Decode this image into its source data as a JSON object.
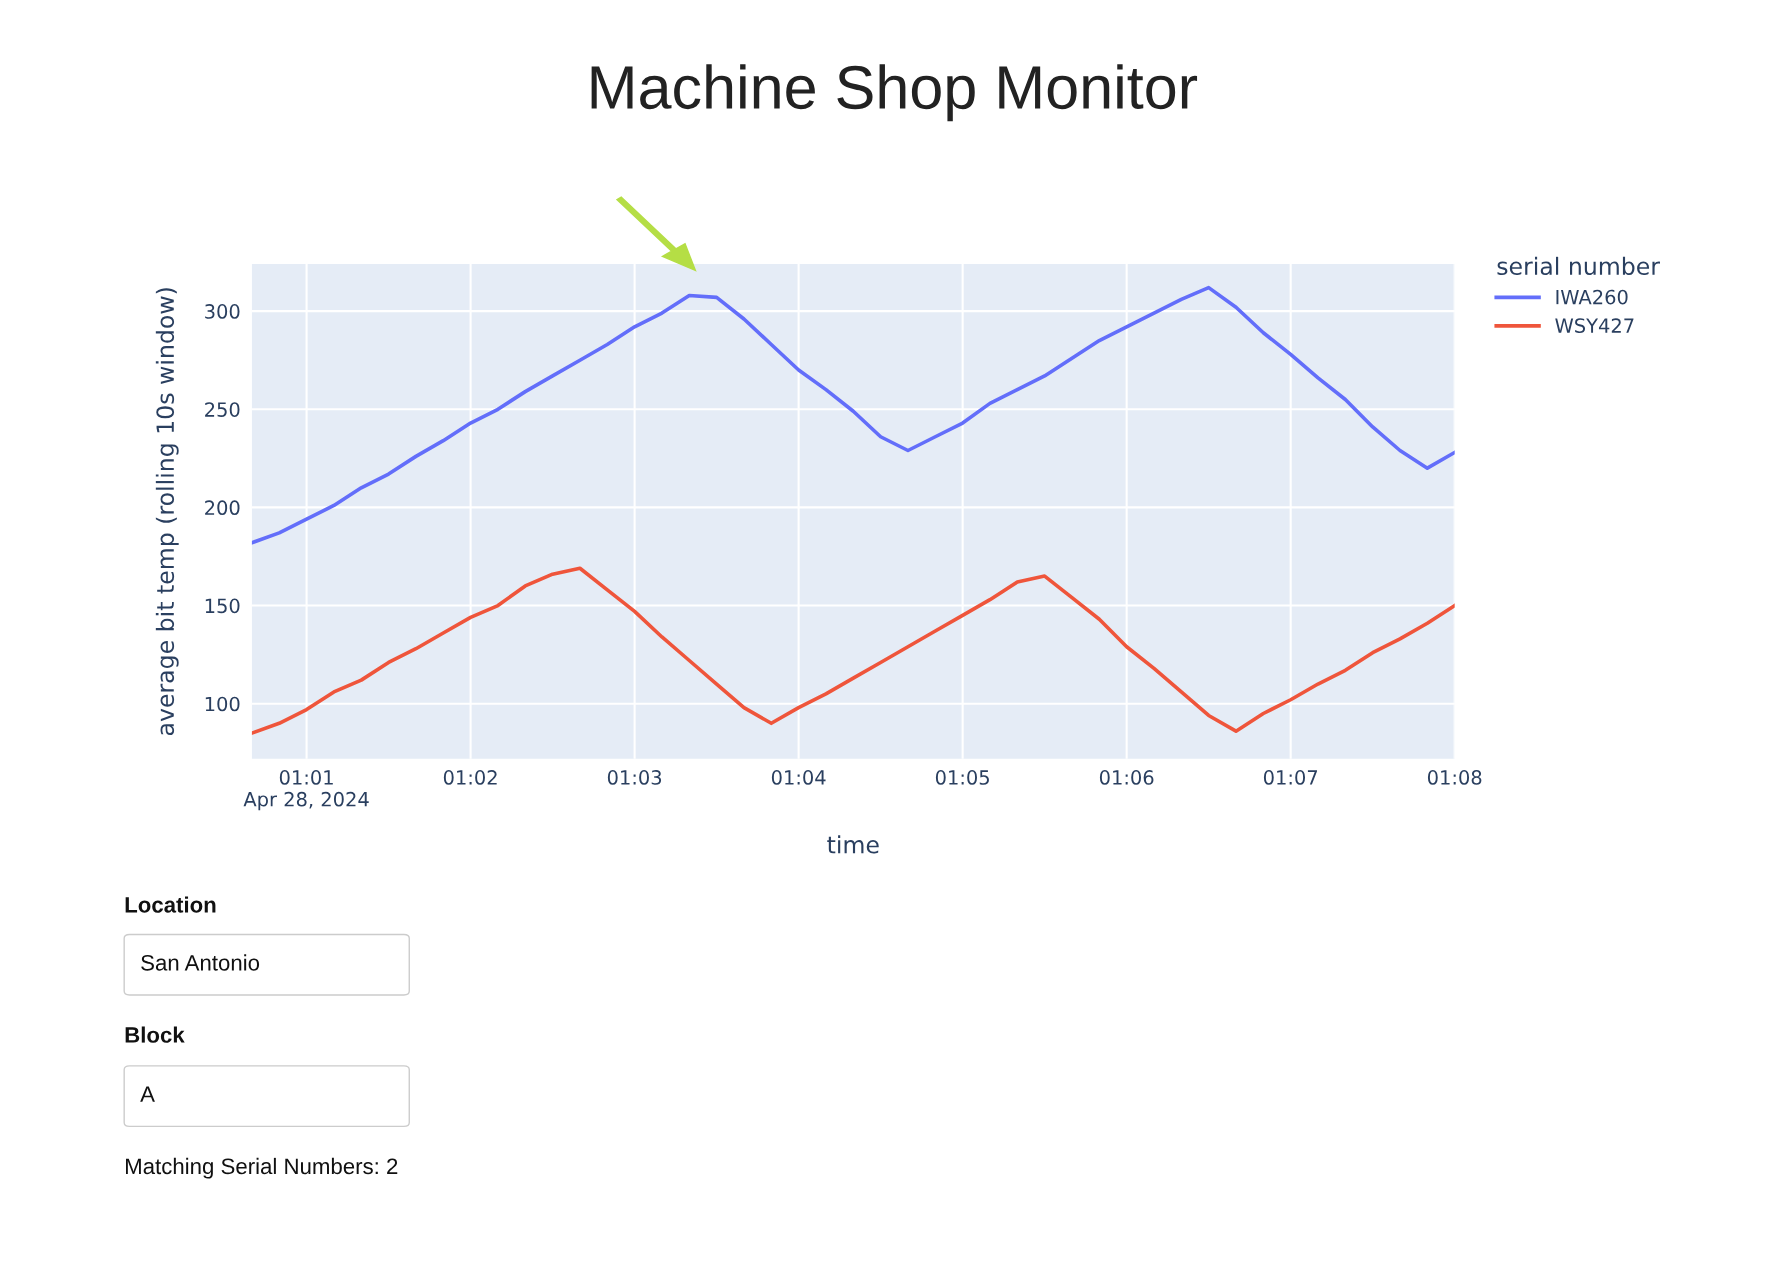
{
  "chart_data": {
    "type": "line",
    "title": "Machine Shop Monitor",
    "xlabel": "time",
    "ylabel": "average bit temp (rolling 10s window)",
    "legend_title": "serial number",
    "x": [
      "2024-04-28T01:00:40",
      "2024-04-28T01:00:50",
      "2024-04-28T01:01:00",
      "2024-04-28T01:01:10",
      "2024-04-28T01:01:20",
      "2024-04-28T01:01:30",
      "2024-04-28T01:01:40",
      "2024-04-28T01:01:50",
      "2024-04-28T01:02:00",
      "2024-04-28T01:02:10",
      "2024-04-28T01:02:20",
      "2024-04-28T01:02:30",
      "2024-04-28T01:02:40",
      "2024-04-28T01:02:50",
      "2024-04-28T01:03:00",
      "2024-04-28T01:03:10",
      "2024-04-28T01:03:20",
      "2024-04-28T01:03:30",
      "2024-04-28T01:03:40",
      "2024-04-28T01:03:50",
      "2024-04-28T01:04:00",
      "2024-04-28T01:04:10",
      "2024-04-28T01:04:20",
      "2024-04-28T01:04:30",
      "2024-04-28T01:04:40",
      "2024-04-28T01:04:50",
      "2024-04-28T01:05:00",
      "2024-04-28T01:05:10",
      "2024-04-28T01:05:20",
      "2024-04-28T01:05:30",
      "2024-04-28T01:05:40",
      "2024-04-28T01:05:50",
      "2024-04-28T01:06:00",
      "2024-04-28T01:06:10",
      "2024-04-28T01:06:20",
      "2024-04-28T01:06:30",
      "2024-04-28T01:06:40",
      "2024-04-28T01:06:50",
      "2024-04-28T01:07:00",
      "2024-04-28T01:07:10",
      "2024-04-28T01:07:20",
      "2024-04-28T01:07:30",
      "2024-04-28T01:07:40",
      "2024-04-28T01:07:50",
      "2024-04-28T01:08:00"
    ],
    "series": [
      {
        "name": "IWA260",
        "color": "#636efa",
        "values": [
          182,
          187,
          194,
          201,
          210,
          217,
          226,
          234,
          243,
          250,
          259,
          267,
          275,
          283,
          292,
          299,
          308,
          307,
          296,
          283,
          270,
          260,
          249,
          236,
          229,
          236,
          243,
          253,
          260,
          267,
          276,
          285,
          292,
          299,
          306,
          312,
          302,
          289,
          278,
          266,
          255,
          241,
          229,
          220,
          228
        ]
      },
      {
        "name": "WSY427",
        "color": "#ef553b",
        "values": [
          85,
          90,
          97,
          106,
          112,
          121,
          128,
          136,
          144,
          150,
          160,
          166,
          169,
          158,
          147,
          134,
          122,
          110,
          98,
          90,
          98,
          105,
          113,
          121,
          129,
          137,
          145,
          153,
          162,
          165,
          154,
          143,
          129,
          118,
          106,
          94,
          86,
          95,
          102,
          110,
          117,
          126,
          133,
          141,
          150
        ]
      }
    ],
    "xlim": [
      "2024-04-28T01:00:40",
      "2024-04-28T01:08:00"
    ],
    "xticks": [
      {
        "value": "2024-04-28T01:01",
        "label": "01:01\nApr 28, 2024"
      },
      {
        "value": "2024-04-28T01:02",
        "label": "01:02"
      },
      {
        "value": "2024-04-28T01:03",
        "label": "01:03"
      },
      {
        "value": "2024-04-28T01:04",
        "label": "01:04"
      },
      {
        "value": "2024-04-28T01:05",
        "label": "01:05"
      },
      {
        "value": "2024-04-28T01:06",
        "label": "01:06"
      },
      {
        "value": "2024-04-28T01:07",
        "label": "01:07"
      },
      {
        "value": "2024-04-28T01:08",
        "label": "01:08"
      }
    ],
    "ylim": [
      72,
      324
    ],
    "yticks": [
      100,
      150,
      200,
      250,
      300
    ],
    "grid": true,
    "legend": "top right",
    "line_style": "solid",
    "marker": "none",
    "annotations": [
      "Location",
      "San Antonio",
      "Block",
      "A",
      "Matching Serial Numbers: 2"
    ]
  }
}
